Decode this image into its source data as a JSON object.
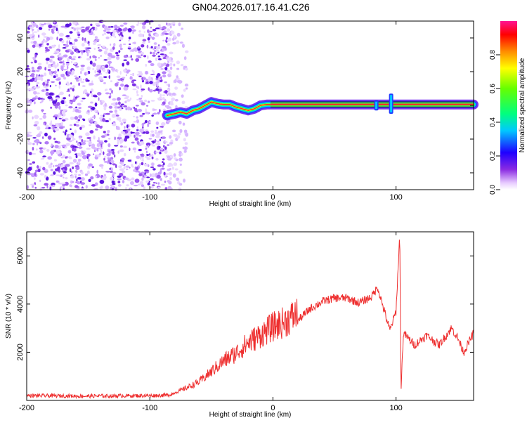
{
  "title": "GN04.2026.017.16.41.C26",
  "chart_data": [
    {
      "type": "heatmap",
      "name": "spectrogram",
      "xlabel": "Height of straight line (km)",
      "ylabel": "Frequency (Hz)",
      "xlim": [
        -200,
        163
      ],
      "ylim": [
        -50,
        50
      ],
      "xticks": [
        -200,
        -100,
        0,
        100
      ],
      "yticks": [
        -40,
        -20,
        0,
        20,
        40
      ],
      "colorbar": {
        "label": "Normalized spectral amplitude",
        "range": [
          0,
          1
        ],
        "ticks": [
          "0.0",
          "0.2",
          "0.4",
          "0.6",
          "0.8"
        ],
        "tick_values": [
          0.0,
          0.2,
          0.4,
          0.6,
          0.8
        ]
      },
      "noise_region": {
        "x_range": [
          -200,
          -85
        ],
        "level": 0.15
      },
      "sparse_noise_region": {
        "x_range": [
          -85,
          -70
        ],
        "level": 0.08
      },
      "signal_trace": [
        {
          "x": -86,
          "f": -6,
          "amp": 0.35
        },
        {
          "x": -80,
          "f": -5,
          "amp": 0.4
        },
        {
          "x": -75,
          "f": -4,
          "amp": 0.45
        },
        {
          "x": -70,
          "f": -5,
          "amp": 0.42
        },
        {
          "x": -65,
          "f": -3,
          "amp": 0.45
        },
        {
          "x": -60,
          "f": -2,
          "amp": 0.5
        },
        {
          "x": -55,
          "f": 0,
          "amp": 0.55
        },
        {
          "x": -50,
          "f": 2,
          "amp": 0.55
        },
        {
          "x": -45,
          "f": 1,
          "amp": 0.75
        },
        {
          "x": -40,
          "f": 0.5,
          "amp": 0.8
        },
        {
          "x": -35,
          "f": 0.5,
          "amp": 0.8
        },
        {
          "x": -30,
          "f": -1,
          "amp": 0.6
        },
        {
          "x": -25,
          "f": -2,
          "amp": 0.55
        },
        {
          "x": -20,
          "f": -3,
          "amp": 0.6
        },
        {
          "x": -15,
          "f": -2,
          "amp": 0.55
        },
        {
          "x": -10,
          "f": 0,
          "amp": 0.55
        },
        {
          "x": -5,
          "f": 0.5,
          "amp": 0.75
        },
        {
          "x": 0,
          "f": 0.5,
          "amp": 0.95
        },
        {
          "x": 40,
          "f": 0.5,
          "amp": 0.95
        },
        {
          "x": 80,
          "f": 0.5,
          "amp": 0.95
        },
        {
          "x": 95,
          "f": 0.5,
          "amp": 0.95
        },
        {
          "x": 120,
          "f": 0.5,
          "amp": 0.95
        },
        {
          "x": 163,
          "f": 0.5,
          "amp": 0.95
        }
      ],
      "bursts": [
        {
          "x": 84,
          "f_range": [
            -3,
            3
          ]
        },
        {
          "x": 96,
          "f_range": [
            -5,
            7
          ]
        }
      ]
    },
    {
      "type": "line",
      "name": "snr",
      "xlabel": "Height of straight line (km)",
      "ylabel": "SNR (10 * v/v)",
      "xlim": [
        -200,
        163
      ],
      "ylim": [
        0,
        7000
      ],
      "xticks": [
        -200,
        -100,
        0,
        100
      ],
      "yticks": [
        2000,
        4000,
        6000
      ],
      "color": "#ee2f2f",
      "envelope": [
        {
          "x": -200,
          "y": 200
        },
        {
          "x": -150,
          "y": 180
        },
        {
          "x": -100,
          "y": 200
        },
        {
          "x": -85,
          "y": 220
        },
        {
          "x": -75,
          "y": 380
        },
        {
          "x": -60,
          "y": 700
        },
        {
          "x": -50,
          "y": 1100
        },
        {
          "x": -40,
          "y": 1500
        },
        {
          "x": -30,
          "y": 1800
        },
        {
          "x": -20,
          "y": 2200
        },
        {
          "x": -10,
          "y": 2500
        },
        {
          "x": 0,
          "y": 2800
        },
        {
          "x": 10,
          "y": 3000
        },
        {
          "x": 20,
          "y": 3300
        },
        {
          "x": 30,
          "y": 3800
        },
        {
          "x": 40,
          "y": 4100
        },
        {
          "x": 50,
          "y": 4250
        },
        {
          "x": 60,
          "y": 4250
        },
        {
          "x": 70,
          "y": 4050
        },
        {
          "x": 80,
          "y": 4300
        },
        {
          "x": 85,
          "y": 4700
        },
        {
          "x": 90,
          "y": 3800
        },
        {
          "x": 95,
          "y": 2900
        },
        {
          "x": 100,
          "y": 3700
        },
        {
          "x": 103,
          "y": 6900
        },
        {
          "x": 104,
          "y": 400
        },
        {
          "x": 106,
          "y": 2800
        },
        {
          "x": 115,
          "y": 2300
        },
        {
          "x": 125,
          "y": 2700
        },
        {
          "x": 135,
          "y": 2300
        },
        {
          "x": 145,
          "y": 3000
        },
        {
          "x": 150,
          "y": 2600
        },
        {
          "x": 155,
          "y": 2000
        },
        {
          "x": 163,
          "y": 2800
        }
      ]
    }
  ]
}
